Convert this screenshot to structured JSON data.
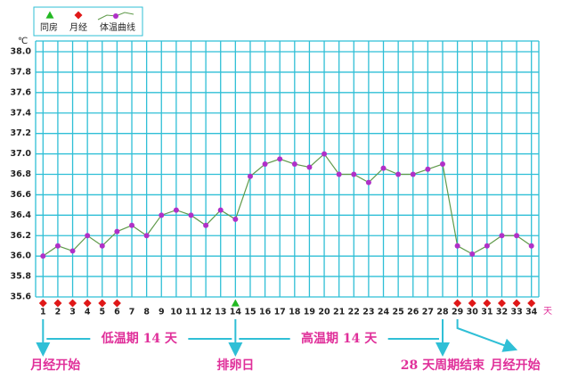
{
  "chart_data": {
    "type": "line",
    "y_unit": "℃",
    "x_unit": "天",
    "x": [
      1,
      2,
      3,
      4,
      5,
      6,
      7,
      8,
      9,
      10,
      11,
      12,
      13,
      14,
      15,
      16,
      17,
      18,
      19,
      20,
      21,
      22,
      23,
      24,
      25,
      26,
      27,
      28,
      29,
      30,
      31,
      32,
      33,
      34
    ],
    "xlim": [
      0.5,
      34.5
    ],
    "series": [
      {
        "name": "体温曲线",
        "color": "#b030c8",
        "line_color": "#5f9a4a",
        "values": [
          36.0,
          36.1,
          36.05,
          36.2,
          36.1,
          36.24,
          36.3,
          36.2,
          36.4,
          36.45,
          36.4,
          36.3,
          36.45,
          36.36,
          36.78,
          36.9,
          36.95,
          36.9,
          36.87,
          37.0,
          36.8,
          36.8,
          36.72,
          36.86,
          36.8,
          36.8,
          36.85,
          36.9,
          36.1,
          36.02,
          36.1,
          36.2,
          36.2,
          36.1
        ]
      }
    ],
    "events": [
      {
        "name": "同房",
        "color": "#22b822",
        "shape": "triangle",
        "days": [
          14
        ]
      },
      {
        "name": "月经",
        "color": "#e01818",
        "shape": "diamond",
        "days": [
          1,
          2,
          3,
          4,
          5,
          6,
          29,
          30,
          31,
          32,
          33,
          34
        ]
      }
    ],
    "ylim": [
      35.6,
      38.0
    ],
    "yticks": [
      {
        "value": 35.6,
        "label": "35.6"
      },
      {
        "value": 35.8,
        "label": "35.8"
      },
      {
        "value": 36.0,
        "label": "36.0"
      },
      {
        "value": 36.2,
        "label": "36.2"
      },
      {
        "value": 36.4,
        "label": "36.4"
      },
      {
        "value": 36.6,
        "label": "36.6"
      },
      {
        "value": 36.8,
        "label": "36.8"
      },
      {
        "value": 37.0,
        "label": "37.0"
      },
      {
        "value": 37.2,
        "label": "37.2"
      },
      {
        "value": 37.4,
        "label": "37.4"
      },
      {
        "value": 37.6,
        "label": "37.6"
      },
      {
        "value": 37.8,
        "label": "37.8"
      },
      {
        "value": 38.0,
        "label": "38.0"
      }
    ],
    "grid": true,
    "annotations": [
      {
        "text": "月经开始",
        "day": 1
      },
      {
        "text": "排卵日",
        "day": 14
      },
      {
        "text": "28 天周期结束",
        "day": 28
      },
      {
        "text": "月经开始",
        "day": 29
      }
    ],
    "phases": [
      {
        "text": "低温期 14 天",
        "from": 1,
        "to": 14
      },
      {
        "text": "高温期 14 天",
        "from": 14,
        "to": 28
      }
    ]
  }
}
